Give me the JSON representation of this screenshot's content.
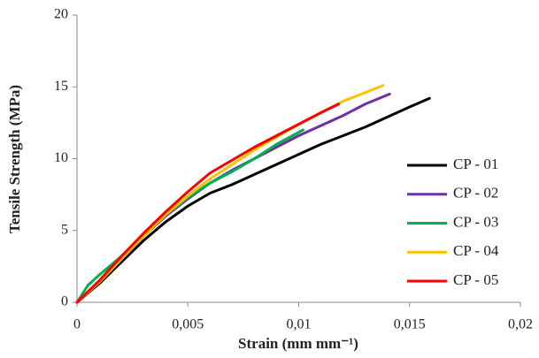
{
  "chart_data": {
    "type": "line",
    "x_label": "Strain (mm mm⁻¹)",
    "y_label": "Tensile Strength (MPa)",
    "xlim": [
      0,
      0.02
    ],
    "xticks": [
      0,
      {
        "value": 0.005,
        "label": "0,005"
      },
      {
        "value": 0.01,
        "label": "0,01"
      },
      {
        "value": 0.015,
        "label": "0,015"
      },
      {
        "value": 0.02,
        "label": "0,02"
      }
    ],
    "ylim": [
      0,
      20
    ],
    "yticks": [
      0,
      5,
      10,
      15,
      20
    ],
    "grid": false,
    "legend": "right",
    "series": [
      {
        "name": "CP - 01",
        "color": "#000000",
        "x": [
          0,
          0.001,
          0.002,
          0.003,
          0.004,
          0.005,
          0.006,
          0.007,
          0.008,
          0.009,
          0.01,
          0.011,
          0.012,
          0.013,
          0.014,
          0.015,
          0.0159
        ],
        "values": [
          0,
          1.3,
          2.8,
          4.3,
          5.6,
          6.7,
          7.6,
          8.2,
          8.9,
          9.6,
          10.3,
          11.0,
          11.6,
          12.2,
          12.9,
          13.6,
          14.2
        ]
      },
      {
        "name": "CP - 02",
        "color": "#7030a0",
        "x": [
          0,
          0.001,
          0.002,
          0.003,
          0.004,
          0.005,
          0.006,
          0.007,
          0.008,
          0.009,
          0.01,
          0.011,
          0.012,
          0.013,
          0.0141
        ],
        "values": [
          0,
          1.4,
          3.0,
          4.6,
          6.0,
          7.2,
          8.3,
          9.2,
          10.0,
          10.8,
          11.6,
          12.3,
          13.0,
          13.8,
          14.5
        ]
      },
      {
        "name": "CP - 03",
        "color": "#00b050",
        "x": [
          0,
          0.0005,
          0.001,
          0.002,
          0.003,
          0.004,
          0.005,
          0.006,
          0.007,
          0.008,
          0.009,
          0.0102
        ],
        "values": [
          0,
          1.2,
          1.9,
          3.2,
          4.7,
          6.1,
          7.3,
          8.3,
          9.1,
          10.0,
          11.0,
          12.0
        ]
      },
      {
        "name": "CP - 04",
        "color": "#ffc000",
        "x": [
          0,
          0.001,
          0.002,
          0.003,
          0.004,
          0.005,
          0.006,
          0.007,
          0.008,
          0.009,
          0.01,
          0.011,
          0.012,
          0.013,
          0.0138
        ],
        "values": [
          0,
          1.4,
          3.0,
          4.6,
          6.1,
          7.4,
          8.6,
          9.6,
          10.6,
          11.5,
          12.4,
          13.2,
          14.0,
          14.6,
          15.1
        ]
      },
      {
        "name": "CP - 05",
        "color": "#ff0000",
        "x": [
          0,
          0.001,
          0.002,
          0.003,
          0.004,
          0.005,
          0.006,
          0.007,
          0.008,
          0.009,
          0.01,
          0.011,
          0.0118
        ],
        "values": [
          0,
          1.5,
          3.2,
          4.8,
          6.3,
          7.7,
          9.0,
          9.9,
          10.8,
          11.6,
          12.4,
          13.2,
          13.8
        ]
      }
    ]
  }
}
